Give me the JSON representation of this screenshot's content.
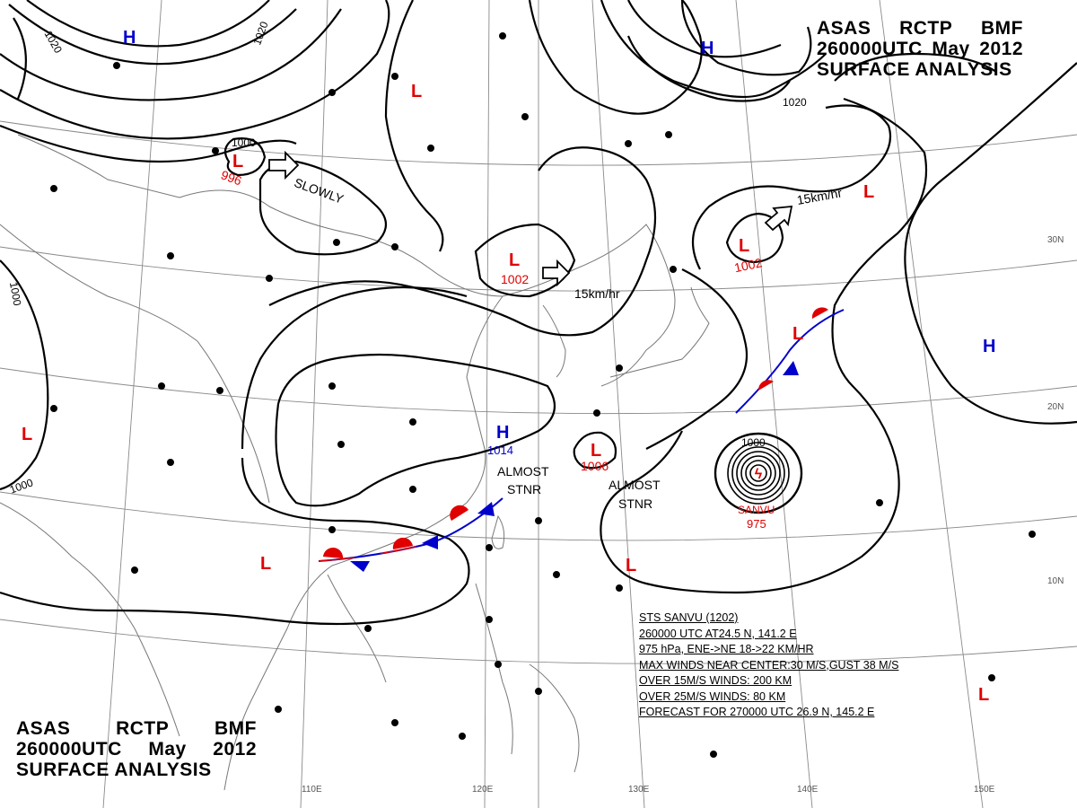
{
  "header": {
    "agency": "ASAS",
    "station": "RCTP",
    "source": "BMF",
    "time_code": "260000UTC",
    "month": "May",
    "year": "2012",
    "product": "SURFACE ANALYSIS"
  },
  "isobar_labels": [
    "1020",
    "1020",
    "1020",
    "1000",
    "1000",
    "1000",
    "1000"
  ],
  "pressure_centers": [
    {
      "type": "H",
      "value": "",
      "color": "#0000cc"
    },
    {
      "type": "H",
      "value": "",
      "color": "#0000cc"
    },
    {
      "type": "H",
      "value": "",
      "color": "#0000cc"
    },
    {
      "type": "H",
      "value": "1014",
      "color": "#0000cc"
    },
    {
      "type": "L",
      "value": "996",
      "color": "#e00000"
    },
    {
      "type": "L",
      "value": "1002",
      "color": "#e00000"
    },
    {
      "type": "L",
      "value": "1002",
      "color": "#e00000"
    },
    {
      "type": "L",
      "value": "1006",
      "color": "#e00000"
    },
    {
      "type": "L",
      "value": "",
      "color": "#e00000"
    },
    {
      "type": "L",
      "value": "",
      "color": "#e00000"
    },
    {
      "type": "L",
      "value": "",
      "color": "#e00000"
    },
    {
      "type": "L",
      "value": "",
      "color": "#e00000"
    },
    {
      "type": "L",
      "value": "",
      "color": "#e00000"
    },
    {
      "type": "L",
      "value": "",
      "color": "#e00000"
    }
  ],
  "movement_labels": [
    "SLOWLY",
    "15km/hr",
    "15km/hr"
  ],
  "stationary_labels": [
    {
      "line1": "ALMOST",
      "line2": "STNR"
    },
    {
      "line1": "ALMOST",
      "line2": "STNR"
    }
  ],
  "typhoon": {
    "name": "SANVU",
    "pressure": "975",
    "outer_isobar": "1000",
    "color": "#e00000"
  },
  "lat_labels": [
    "30N",
    "20N",
    "10N"
  ],
  "lon_labels": [
    "110E",
    "120E",
    "130E",
    "140E",
    "150E"
  ],
  "bulletin": {
    "line1": "STS  SANVU  (1202)",
    "line2": "260000 UTC   AT24.5 N, 141.2 E",
    "line3": "975 hPa, ENE->NE  18->22 KM/HR",
    "line4": "MAX WINDS NEAR CENTER:30 M/S,GUST 38 M/S",
    "line5": "OVER 15M/S WINDS: 200 KM",
    "line6": "OVER 25M/S WINDS: 80 KM",
    "line7": "FORECAST FOR 270000 UTC 26.9 N, 145.2 E"
  },
  "colors": {
    "high": "#0000cc",
    "low": "#e00000",
    "cold_front": "#0000cc",
    "warm_front": "#e00000",
    "isobar": "#000000",
    "coast": "#777777"
  }
}
